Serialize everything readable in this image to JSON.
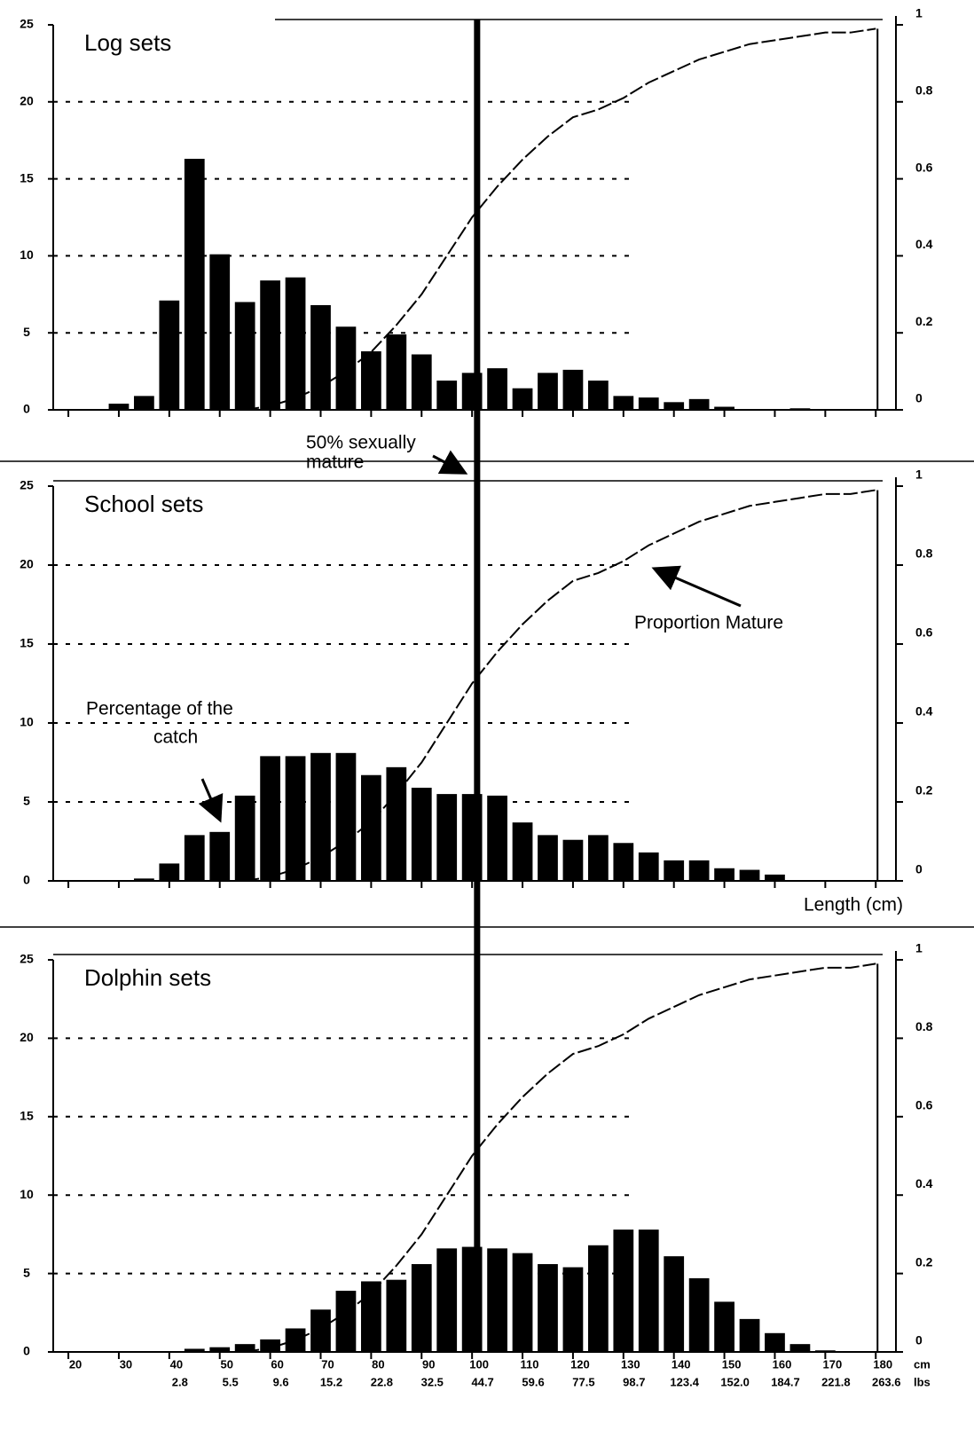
{
  "chart_data": [
    {
      "type": "bar",
      "title": "Log sets",
      "xlim": [
        17,
        184
      ],
      "ylim": [
        0,
        25
      ],
      "yticks": [
        0,
        5,
        10,
        15,
        20,
        25
      ],
      "y2lim": [
        0,
        1
      ],
      "y2ticks": [
        0,
        0.2,
        0.4,
        0.6,
        0.8,
        1
      ],
      "grid": true,
      "annotations": [
        [
          "50% sexually",
          "mature"
        ]
      ],
      "series": [
        {
          "type": "bar",
          "color": "#000000",
          "x": [
            30,
            35,
            40,
            45,
            50,
            55,
            60,
            65,
            70,
            75,
            80,
            85,
            90,
            95,
            100,
            105,
            110,
            115,
            120,
            125,
            130,
            135,
            140,
            145,
            150,
            155,
            160,
            165,
            170
          ],
          "values": [
            0.4,
            0.9,
            7.1,
            16.3,
            10.1,
            7.0,
            8.4,
            8.6,
            6.8,
            5.4,
            3.8,
            4.9,
            3.6,
            1.9,
            2.4,
            2.7,
            1.4,
            2.4,
            2.6,
            1.9,
            0.9,
            0.8,
            0.5,
            0.7,
            0.2,
            0,
            0,
            0.1,
            0
          ]
        },
        {
          "type": "line",
          "axis": "y2",
          "color": "#000000",
          "x": [
            55,
            60,
            65,
            70,
            75,
            80,
            85,
            90,
            95,
            100,
            105,
            110,
            115,
            120,
            125,
            130,
            135,
            140,
            145,
            150,
            155,
            160,
            165,
            170,
            175,
            180
          ],
          "values": [
            0,
            0.01,
            0.03,
            0.06,
            0.1,
            0.15,
            0.22,
            0.3,
            0.4,
            0.5,
            0.58,
            0.65,
            0.71,
            0.76,
            0.78,
            0.81,
            0.85,
            0.88,
            0.91,
            0.93,
            0.95,
            0.96,
            0.97,
            0.98,
            0.98,
            0.99
          ]
        }
      ]
    },
    {
      "type": "bar",
      "title": "School sets",
      "xlabel": "Length (cm)",
      "xlim": [
        17,
        184
      ],
      "ylim": [
        0,
        25
      ],
      "yticks": [
        0,
        5,
        10,
        15,
        20,
        25
      ],
      "y2lim": [
        0,
        1
      ],
      "y2ticks": [
        0,
        0.2,
        0.4,
        0.6,
        0.8,
        1
      ],
      "grid": true,
      "annotations": [
        [
          "Proportion Mature"
        ],
        [
          "Percentage of the",
          "catch"
        ]
      ],
      "series": [
        {
          "type": "bar",
          "color": "#000000",
          "x": [
            30,
            35,
            40,
            45,
            50,
            55,
            60,
            65,
            70,
            75,
            80,
            85,
            90,
            95,
            100,
            105,
            110,
            115,
            120,
            125,
            130,
            135,
            140,
            145,
            150,
            155,
            160,
            165,
            170
          ],
          "values": [
            0.05,
            0.15,
            1.1,
            2.9,
            3.1,
            5.4,
            7.9,
            7.9,
            8.1,
            8.1,
            6.7,
            7.2,
            5.9,
            5.5,
            5.5,
            5.4,
            3.7,
            2.9,
            2.6,
            2.9,
            2.4,
            1.8,
            1.3,
            1.3,
            0.8,
            0.7,
            0.4,
            0,
            0
          ]
        },
        {
          "type": "line",
          "axis": "y2",
          "color": "#000000",
          "x": [
            55,
            60,
            65,
            70,
            75,
            80,
            85,
            90,
            95,
            100,
            105,
            110,
            115,
            120,
            125,
            130,
            135,
            140,
            145,
            150,
            155,
            160,
            165,
            170,
            175,
            180
          ],
          "values": [
            0,
            0.01,
            0.03,
            0.06,
            0.1,
            0.15,
            0.22,
            0.3,
            0.4,
            0.5,
            0.58,
            0.65,
            0.71,
            0.76,
            0.78,
            0.81,
            0.85,
            0.88,
            0.91,
            0.93,
            0.95,
            0.96,
            0.97,
            0.98,
            0.98,
            0.99
          ]
        }
      ]
    },
    {
      "type": "bar",
      "title": "Dolphin sets",
      "xlim": [
        17,
        184
      ],
      "ylim": [
        0,
        25
      ],
      "yticks": [
        0,
        5,
        10,
        15,
        20,
        25
      ],
      "y2lim": [
        0,
        1
      ],
      "y2ticks": [
        0,
        0.2,
        0.4,
        0.6,
        0.8,
        1
      ],
      "grid": true,
      "xticks": [
        20,
        30,
        40,
        50,
        60,
        70,
        80,
        90,
        100,
        110,
        120,
        130,
        140,
        150,
        160,
        170,
        180
      ],
      "x_unit": "cm",
      "x2ticks": [
        {
          "value": 40,
          "label": "2.8"
        },
        {
          "value": 50,
          "label": "5.5"
        },
        {
          "value": 60,
          "label": "9.6"
        },
        {
          "value": 70,
          "label": "15.2"
        },
        {
          "value": 80,
          "label": "22.8"
        },
        {
          "value": 90,
          "label": "32.5"
        },
        {
          "value": 100,
          "label": "44.7"
        },
        {
          "value": 110,
          "label": "59.6"
        },
        {
          "value": 120,
          "label": "77.5"
        },
        {
          "value": 130,
          "label": "98.7"
        },
        {
          "value": 140,
          "label": "123.4"
        },
        {
          "value": 150,
          "label": "152.0"
        },
        {
          "value": 160,
          "label": "184.7"
        },
        {
          "value": 170,
          "label": "221.8"
        },
        {
          "value": 180,
          "label": "263.6"
        }
      ],
      "x2_unit": "lbs",
      "mature_50_length": 101,
      "series": [
        {
          "type": "bar",
          "color": "#000000",
          "x": [
            30,
            35,
            40,
            45,
            50,
            55,
            60,
            65,
            70,
            75,
            80,
            85,
            90,
            95,
            100,
            105,
            110,
            115,
            120,
            125,
            130,
            135,
            140,
            145,
            150,
            155,
            160,
            165,
            170
          ],
          "values": [
            0,
            0,
            0,
            0.2,
            0.3,
            0.5,
            0.8,
            1.5,
            2.7,
            3.9,
            4.5,
            4.6,
            5.6,
            6.6,
            6.7,
            6.6,
            6.3,
            5.6,
            5.4,
            6.8,
            7.8,
            7.8,
            6.1,
            4.7,
            3.2,
            2.1,
            1.2,
            0.5,
            0.1
          ]
        },
        {
          "type": "line",
          "axis": "y2",
          "color": "#000000",
          "x": [
            55,
            60,
            65,
            70,
            75,
            80,
            85,
            90,
            95,
            100,
            105,
            110,
            115,
            120,
            125,
            130,
            135,
            140,
            145,
            150,
            155,
            160,
            165,
            170,
            175,
            180
          ],
          "values": [
            0,
            0.01,
            0.03,
            0.06,
            0.1,
            0.15,
            0.22,
            0.3,
            0.4,
            0.5,
            0.58,
            0.65,
            0.71,
            0.76,
            0.78,
            0.81,
            0.85,
            0.88,
            0.91,
            0.93,
            0.95,
            0.96,
            0.97,
            0.98,
            0.98,
            0.99
          ]
        }
      ]
    }
  ]
}
